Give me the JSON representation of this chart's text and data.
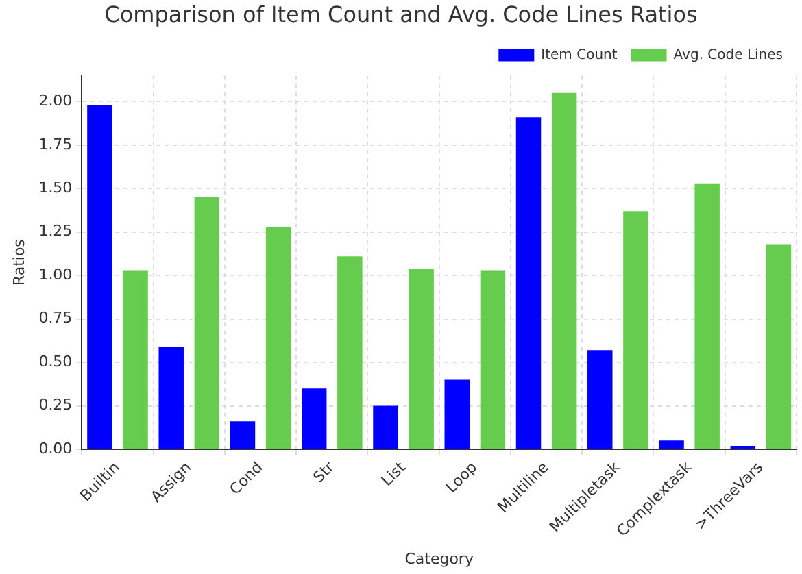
{
  "chart_data": {
    "type": "bar",
    "title": "Comparison of Item Count and Avg. Code Lines Ratios",
    "xlabel": "Category",
    "ylabel": "Ratios",
    "categories": [
      "Builtin",
      "Assign",
      "Cond",
      "Str",
      "List",
      "Loop",
      "Multiline",
      "Multipletask",
      "Complextask",
      ">ThreeVars"
    ],
    "series": [
      {
        "name": "Item Count",
        "color": "#0000ff",
        "values": [
          1.98,
          0.59,
          0.16,
          0.35,
          0.25,
          0.4,
          1.91,
          0.57,
          0.05,
          0.02
        ]
      },
      {
        "name": "Avg. Code Lines",
        "color": "#66cc4d",
        "values": [
          1.03,
          1.45,
          1.28,
          1.11,
          1.04,
          1.03,
          2.05,
          1.37,
          1.53,
          1.18
        ]
      }
    ],
    "ylim": [
      0,
      2.15
    ],
    "yticks": [
      {
        "value": 0,
        "label": "0.00"
      },
      {
        "value": 0.25,
        "label": "0.25"
      },
      {
        "value": 0.5,
        "label": "0.50"
      },
      {
        "value": 0.75,
        "label": "0.75"
      },
      {
        "value": 1,
        "label": "1.00"
      },
      {
        "value": 1.25,
        "label": "1.25"
      },
      {
        "value": 1.5,
        "label": "1.50"
      },
      {
        "value": 1.75,
        "label": "1.75"
      },
      {
        "value": 2,
        "label": "2.00"
      }
    ],
    "grid": true,
    "legend": "top right"
  }
}
